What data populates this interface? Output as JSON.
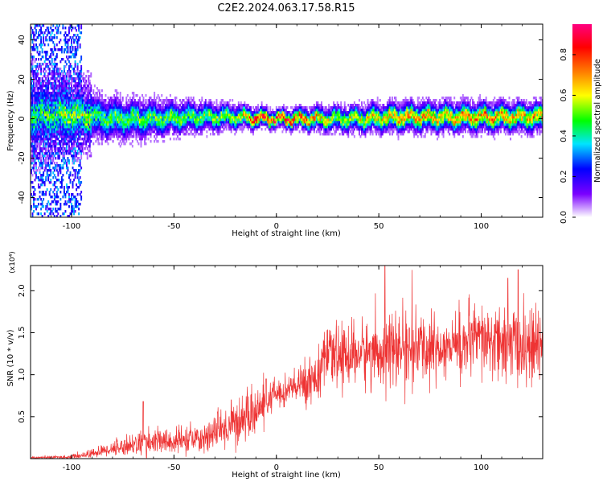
{
  "title": "C2E2.2024.063.17.58.R15",
  "chart_data": [
    {
      "type": "heatmap",
      "name": "spectrogram",
      "xlabel": "Height of straight line (km)",
      "ylabel": "Frequency (Hz)",
      "xlim": [
        -120,
        130
      ],
      "ylim": [
        -50,
        48
      ],
      "xticks": [
        -100,
        -50,
        0,
        50,
        100
      ],
      "yticks": [
        -40,
        -20,
        0,
        20,
        40
      ],
      "xtick_labels": [
        "-100",
        "-50",
        "0",
        "50",
        "100"
      ],
      "ytick_labels": [
        "-40",
        "-20",
        "0",
        "20",
        "40"
      ],
      "colorbar": {
        "label": "Normalized spectral amplitude",
        "range": [
          0,
          0.95
        ],
        "ticks": [
          0.0,
          0.2,
          0.4,
          0.6,
          0.8
        ],
        "tick_labels": [
          "0.0",
          "0.2",
          "0.4",
          "0.6",
          "0.8"
        ],
        "colormap": [
          "#ffffff",
          "#7b00ff",
          "#0000ff",
          "#00e5ff",
          "#00ff00",
          "#ffff00",
          "#ff8000",
          "#ff0000",
          "#ff0080"
        ]
      },
      "band": {
        "center_hz": [
          {
            "x": -120,
            "y": 2
          },
          {
            "x": -100,
            "y": 2
          },
          {
            "x": -80,
            "y": 0
          },
          {
            "x": -60,
            "y": 0
          },
          {
            "x": -40,
            "y": 1
          },
          {
            "x": -20,
            "y": 1
          },
          {
            "x": 0,
            "y": 0
          },
          {
            "x": 20,
            "y": 0
          },
          {
            "x": 40,
            "y": 0
          },
          {
            "x": 60,
            "y": 1
          },
          {
            "x": 80,
            "y": 1
          },
          {
            "x": 100,
            "y": 1
          },
          {
            "x": 130,
            "y": 1
          }
        ],
        "halfwidth_hz": [
          {
            "x": -120,
            "y": 10
          },
          {
            "x": -100,
            "y": 8
          },
          {
            "x": -80,
            "y": 7
          },
          {
            "x": -60,
            "y": 6
          },
          {
            "x": -40,
            "y": 5
          },
          {
            "x": -20,
            "y": 4
          },
          {
            "x": 0,
            "y": 3
          },
          {
            "x": 20,
            "y": 4
          },
          {
            "x": 60,
            "y": 5
          },
          {
            "x": 100,
            "y": 5
          },
          {
            "x": 130,
            "y": 5
          }
        ],
        "peak_amplitude": [
          {
            "x": -120,
            "y": 0.3
          },
          {
            "x": -100,
            "y": 0.45
          },
          {
            "x": -80,
            "y": 0.5
          },
          {
            "x": -40,
            "y": 0.55
          },
          {
            "x": -20,
            "y": 0.6
          },
          {
            "x": -10,
            "y": 0.9
          },
          {
            "x": 0,
            "y": 0.95
          },
          {
            "x": 10,
            "y": 0.9
          },
          {
            "x": 30,
            "y": 0.6
          },
          {
            "x": 60,
            "y": 0.75
          },
          {
            "x": 100,
            "y": 0.8
          },
          {
            "x": 130,
            "y": 0.75
          }
        ]
      }
    },
    {
      "type": "line",
      "name": "snr",
      "xlabel": "Height of straight line (km)",
      "ylabel": "SNR (10 * v/v)",
      "y_multiplier_label": "(x10⁴)",
      "xlim": [
        -120,
        130
      ],
      "ylim": [
        0,
        2.3
      ],
      "xticks": [
        -100,
        -50,
        0,
        50,
        100
      ],
      "yticks": [
        0.5,
        1.0,
        1.5,
        2.0
      ],
      "xtick_labels": [
        "-100",
        "-50",
        "0",
        "50",
        "100"
      ],
      "ytick_labels": [
        "0.5",
        "1.0",
        "1.5",
        "2.0"
      ],
      "series": [
        {
          "color": "#ee3333",
          "envelope": [
            {
              "x": -120,
              "mean": 0.01,
              "amp": 0.01
            },
            {
              "x": -100,
              "mean": 0.02,
              "amp": 0.02
            },
            {
              "x": -90,
              "mean": 0.06,
              "amp": 0.05
            },
            {
              "x": -80,
              "mean": 0.12,
              "amp": 0.08
            },
            {
              "x": -70,
              "mean": 0.17,
              "amp": 0.12
            },
            {
              "x": -60,
              "mean": 0.2,
              "amp": 0.15
            },
            {
              "x": -50,
              "mean": 0.2,
              "amp": 0.14
            },
            {
              "x": -40,
              "mean": 0.22,
              "amp": 0.15
            },
            {
              "x": -30,
              "mean": 0.3,
              "amp": 0.18
            },
            {
              "x": -20,
              "mean": 0.42,
              "amp": 0.25
            },
            {
              "x": -10,
              "mean": 0.55,
              "amp": 0.25
            },
            {
              "x": 0,
              "mean": 0.78,
              "amp": 0.15
            },
            {
              "x": 10,
              "mean": 0.85,
              "amp": 0.2
            },
            {
              "x": 20,
              "mean": 1.0,
              "amp": 0.3
            },
            {
              "x": 25,
              "mean": 1.2,
              "amp": 0.3
            },
            {
              "x": 40,
              "mean": 1.25,
              "amp": 0.35
            },
            {
              "x": 60,
              "mean": 1.3,
              "amp": 0.4
            },
            {
              "x": 80,
              "mean": 1.32,
              "amp": 0.35
            },
            {
              "x": 100,
              "mean": 1.4,
              "amp": 0.4
            },
            {
              "x": 130,
              "mean": 1.3,
              "amp": 0.4
            }
          ],
          "peaks": [
            {
              "x": -65,
              "y": 0.68
            },
            {
              "x": -22,
              "y": 0.7
            },
            {
              "x": -5,
              "y": 0.95
            },
            {
              "x": 53,
              "y": 2.3
            },
            {
              "x": 113,
              "y": 2.15
            },
            {
              "x": 118,
              "y": 2.25
            }
          ]
        }
      ]
    }
  ]
}
